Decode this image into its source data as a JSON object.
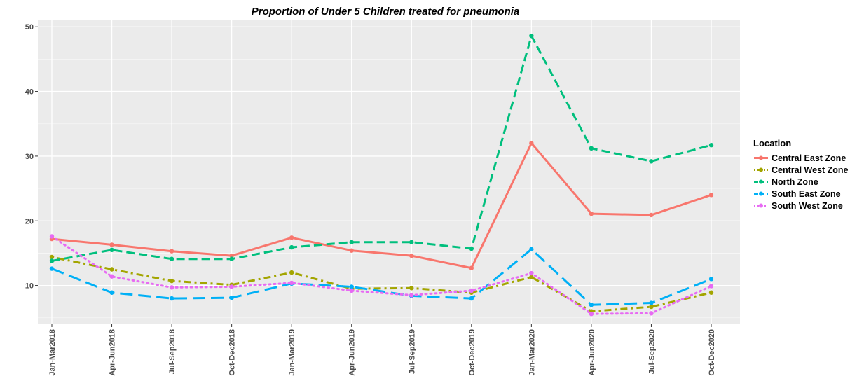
{
  "chart_data": {
    "type": "line",
    "title": "Proportion of Under 5 Children treated for pneumonia",
    "xlabel": "",
    "ylabel": "",
    "categories": [
      "Jan-Mar2018",
      "Apr-Jun2018",
      "Jul-Sep2018",
      "Oct-Dec2018",
      "Jan-Mar2019",
      "Apr-Jun2019",
      "Jul-Sep2019",
      "Oct-Dec2019",
      "Jan-Mar2020",
      "Apr-Jun2020",
      "Jul-Sep2020",
      "Oct-Dec2020"
    ],
    "ylim": [
      4,
      51
    ],
    "yticks": [
      10,
      20,
      30,
      40,
      50
    ],
    "grid": true,
    "legend_title": "Location",
    "legend_position": "right",
    "series": [
      {
        "name": "Central East Zone",
        "color": "#F8766D",
        "dash": "solid",
        "values": [
          17.2,
          16.3,
          15.3,
          14.6,
          17.4,
          15.4,
          14.6,
          12.7,
          32.0,
          21.1,
          20.9,
          24.0
        ]
      },
      {
        "name": "Central West Zone",
        "color": "#A3A500",
        "dash": "dotdash",
        "values": [
          14.4,
          12.5,
          10.7,
          10.1,
          12.0,
          9.5,
          9.6,
          8.9,
          11.3,
          6.0,
          6.7,
          8.9
        ]
      },
      {
        "name": "North Zone",
        "color": "#00BF7D",
        "dash": "dashed",
        "values": [
          13.8,
          15.5,
          14.1,
          14.1,
          15.9,
          16.7,
          16.7,
          15.7,
          48.6,
          31.2,
          29.2,
          31.7
        ]
      },
      {
        "name": "South East Zone",
        "color": "#00B0F6",
        "dash": "longdash",
        "values": [
          12.6,
          8.9,
          8.0,
          8.1,
          10.3,
          9.8,
          8.4,
          8.0,
          15.6,
          7.0,
          7.3,
          11.0
        ]
      },
      {
        "name": "South West Zone",
        "color": "#E76BF3",
        "dash": "dotted",
        "values": [
          17.6,
          11.4,
          9.7,
          9.8,
          10.4,
          9.2,
          8.5,
          9.2,
          11.9,
          5.6,
          5.7,
          9.9
        ]
      }
    ]
  }
}
